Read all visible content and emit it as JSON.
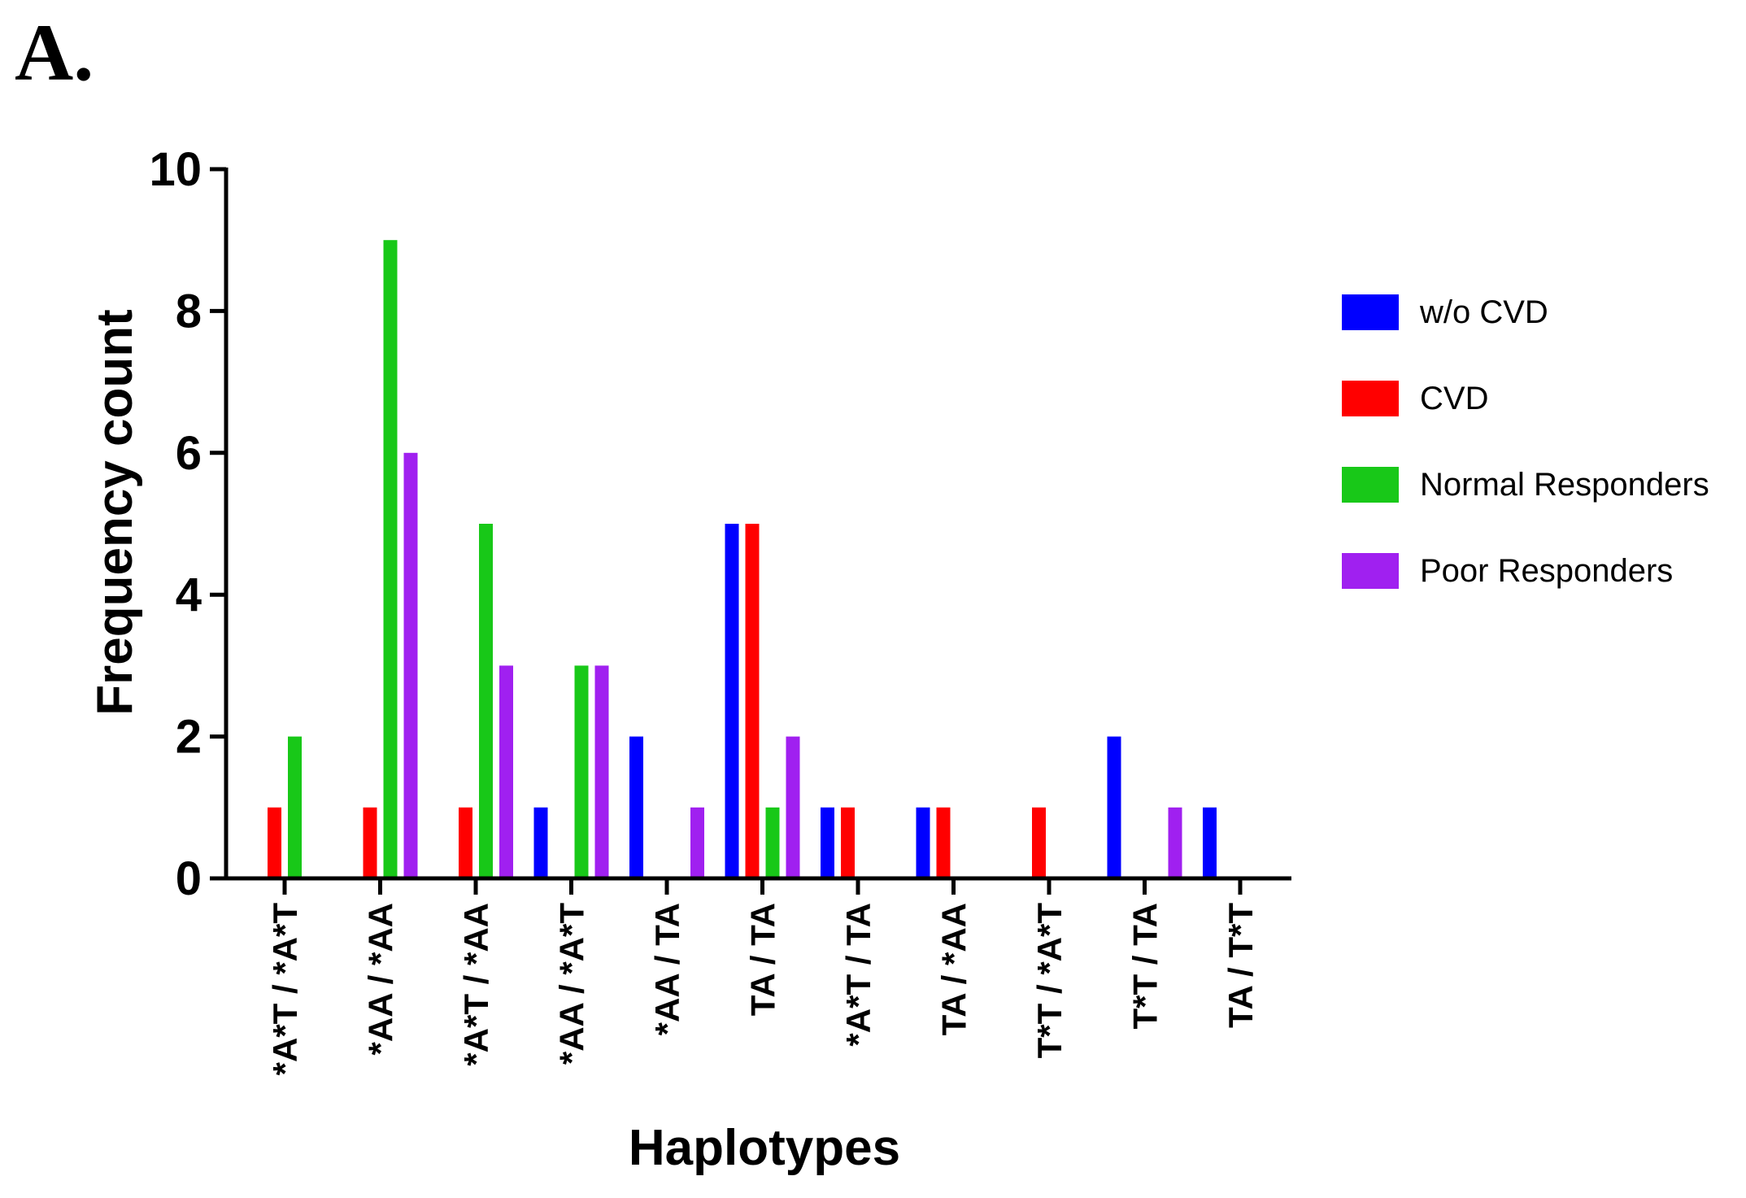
{
  "panel_label": "A.",
  "chart_data": {
    "type": "bar",
    "xlabel": "Haplotypes",
    "ylabel": "Frequency count",
    "ylim": [
      0,
      10
    ],
    "yticks": [
      0,
      2,
      4,
      6,
      8,
      10
    ],
    "grid": false,
    "legend_position": "right",
    "categories": [
      "*A*T / *A*T",
      "*AA / *AA",
      "*A*T / *AA",
      "*AA / *A*T",
      "*AA / TA",
      "TA / TA",
      "*A*T / TA",
      "TA / *AA",
      "T*T / *A*T",
      "T*T / TA",
      "TA / T*T"
    ],
    "series": [
      {
        "name": "w/o CVD",
        "color": "#0000ff",
        "values": [
          0,
          0,
          0,
          1,
          2,
          5,
          1,
          1,
          0,
          2,
          1
        ]
      },
      {
        "name": "CVD",
        "color": "#ff0000",
        "values": [
          1,
          1,
          1,
          0,
          0,
          5,
          1,
          1,
          1,
          0,
          0
        ]
      },
      {
        "name": "Normal Responders",
        "color": "#18c818",
        "values": [
          2,
          9,
          5,
          3,
          0,
          1,
          0,
          0,
          0,
          0,
          0
        ]
      },
      {
        "name": "Poor Responders",
        "color": "#a020f0",
        "values": [
          0,
          6,
          3,
          3,
          1,
          2,
          0,
          0,
          0,
          1,
          0
        ]
      }
    ]
  }
}
